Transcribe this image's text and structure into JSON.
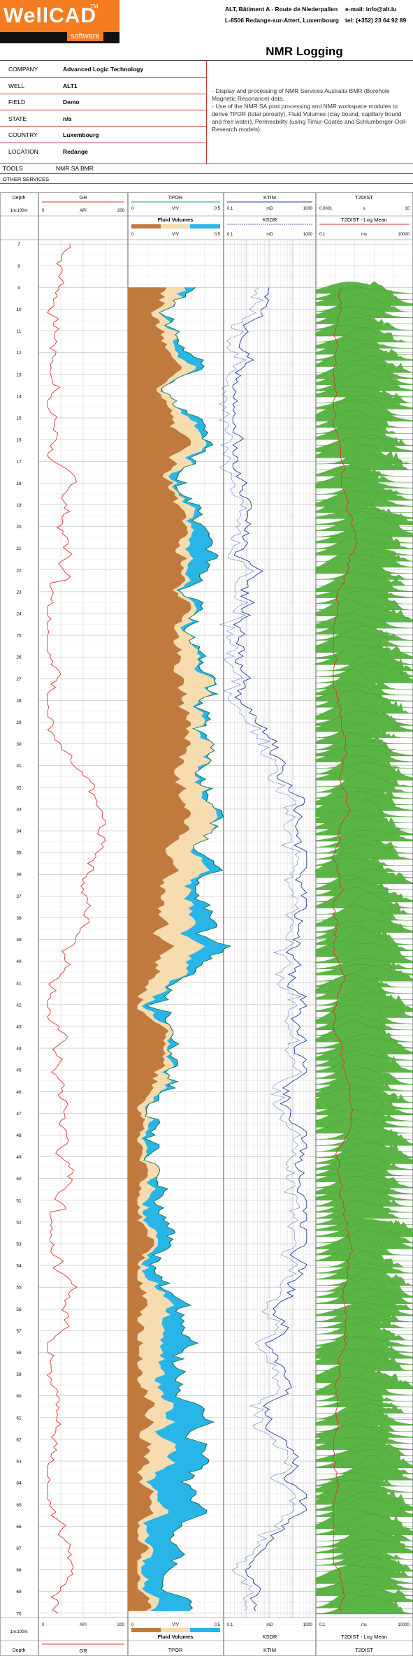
{
  "logo": {
    "brand": "WellCAD",
    "tm": "TM",
    "sub": "software"
  },
  "contact": {
    "addr1": "ALT, Bâtiment A - Route de Niederpallen",
    "addr2": "L-8506 Redange-sur-Attert, Luxembourg",
    "email": "e-mail: info@alt.lu",
    "tel": "tel: (+352) 23 64 92 89"
  },
  "title": "NMR Logging",
  "header_fields": [
    {
      "label": "COMPANY",
      "value": "Advanced Logic Technology"
    },
    {
      "label": "WELL",
      "value": "ALT1"
    },
    {
      "label": "FIELD",
      "value": "Demo"
    },
    {
      "label": "STATE",
      "value": "n/a"
    },
    {
      "label": "COUNTRY",
      "value": "Luxembourg"
    },
    {
      "label": "LOCATION",
      "value": "Redange"
    }
  ],
  "description": "- Display and processing of NMR Services Australia BMR (Borehole Magnetic Resonance) data.\n- Use of the NMR SA post processing and NMR workspace modules to derive TPOR (total porosity), Fluid Volumes (clay bound, capillary bound and free water), Permeability (using Timur-Coates and Schlumberger-Doll-Research models).",
  "tools": {
    "label": "TOOLS",
    "value": "NMR SA BMR"
  },
  "other_services": {
    "label": "OTHER SERVICES"
  },
  "tracks": {
    "depth": {
      "title": "Depth",
      "scale": "1m:100m"
    },
    "gr": {
      "title": "GR",
      "unit": "API",
      "min": "0",
      "max": "200",
      "color": "#e03030"
    },
    "tpor": {
      "title": "TPOR",
      "unit": "V/V",
      "min": "0",
      "max": "0.5",
      "color": "#1aa05a"
    },
    "fluid": {
      "title": "Fluid Volumes",
      "unit": "V/V",
      "min": "0",
      "max": "0.5"
    },
    "ktim": {
      "title": "KTIM",
      "unit": "mD",
      "min": "0.1",
      "max": "1000",
      "color": "#1f3b9c"
    },
    "ksdr": {
      "title": "KSDR",
      "unit": "mD",
      "min": "0.1",
      "max": "1000",
      "color": "#1f3b9c"
    },
    "t2dist": {
      "title": "T2DIST",
      "unit": "s",
      "min": "0.0001",
      "max": "10",
      "color": "#5bb544"
    },
    "t2mean": {
      "title": "T2DIST - Log Mean",
      "unit": "ms",
      "min": "0.1",
      "max": "10000",
      "color": "#e03030"
    }
  },
  "depths": [
    "7",
    "8",
    "9",
    "10",
    "11",
    "12",
    "13",
    "14",
    "15",
    "16",
    "17",
    "18",
    "19",
    "20",
    "21",
    "22",
    "23",
    "24",
    "25",
    "26",
    "27",
    "28",
    "29",
    "30",
    "31",
    "32",
    "33",
    "34",
    "35",
    "36",
    "37",
    "38",
    "39",
    "40",
    "41",
    "42",
    "43",
    "44",
    "45",
    "46",
    "47",
    "48",
    "49",
    "50",
    "51",
    "52",
    "53",
    "54",
    "55",
    "56",
    "57",
    "58",
    "59",
    "60",
    "61",
    "62",
    "63",
    "64",
    "65",
    "66",
    "67",
    "68",
    "69",
    "70"
  ],
  "colors": {
    "clay": "#c07a3e",
    "capillary": "#f6dcae",
    "free": "#29b5e8",
    "grid": "#bbbbbb"
  }
}
